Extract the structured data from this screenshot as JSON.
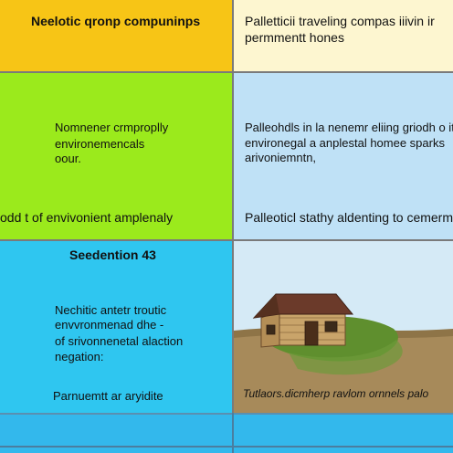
{
  "top_left": {
    "title": "Neelotic qronp compuninps"
  },
  "top_right": {
    "line1": "Palletticii traveling compas iiivin ir",
    "line2": "permmentt hones"
  },
  "mid_left": {
    "line1": "Nomnener crmproplly",
    "line2": "environemencals",
    "line3": "oour.",
    "footer": "odd t of envivonient amplenaly"
  },
  "mid_right": {
    "line1": "Palleohdls in la nenemr eliing griodh o it",
    "line2": "environegal a anplestal homee sparks",
    "line3": "arivoniemntn,",
    "footer": "Palleoticl stathy aldenting to cemerm"
  },
  "bottom_left": {
    "heading": "Seedention 43",
    "line1": "Nechitic antetr troutic",
    "line2": "envvronmenad dhe -",
    "line3": "of srivonnenetal alaction",
    "line4": "negation:",
    "footer": "Parnuemtt ar aryidite"
  },
  "bottom_right": {
    "caption": "Tutlaors.dicmherp ravlom ornnels palo"
  },
  "colors": {
    "yellow": "#f7c516",
    "cream": "#fdf6d0",
    "green": "#9bea1c",
    "light_blue": "#bfe1f6",
    "cyan": "#2fc6f0",
    "pale_blue": "#d5eaf6",
    "house_roof": "#6b3a2a",
    "house_wall": "#c9a46a",
    "ground": "#a78a5a",
    "grass": "#5f8f2e"
  }
}
